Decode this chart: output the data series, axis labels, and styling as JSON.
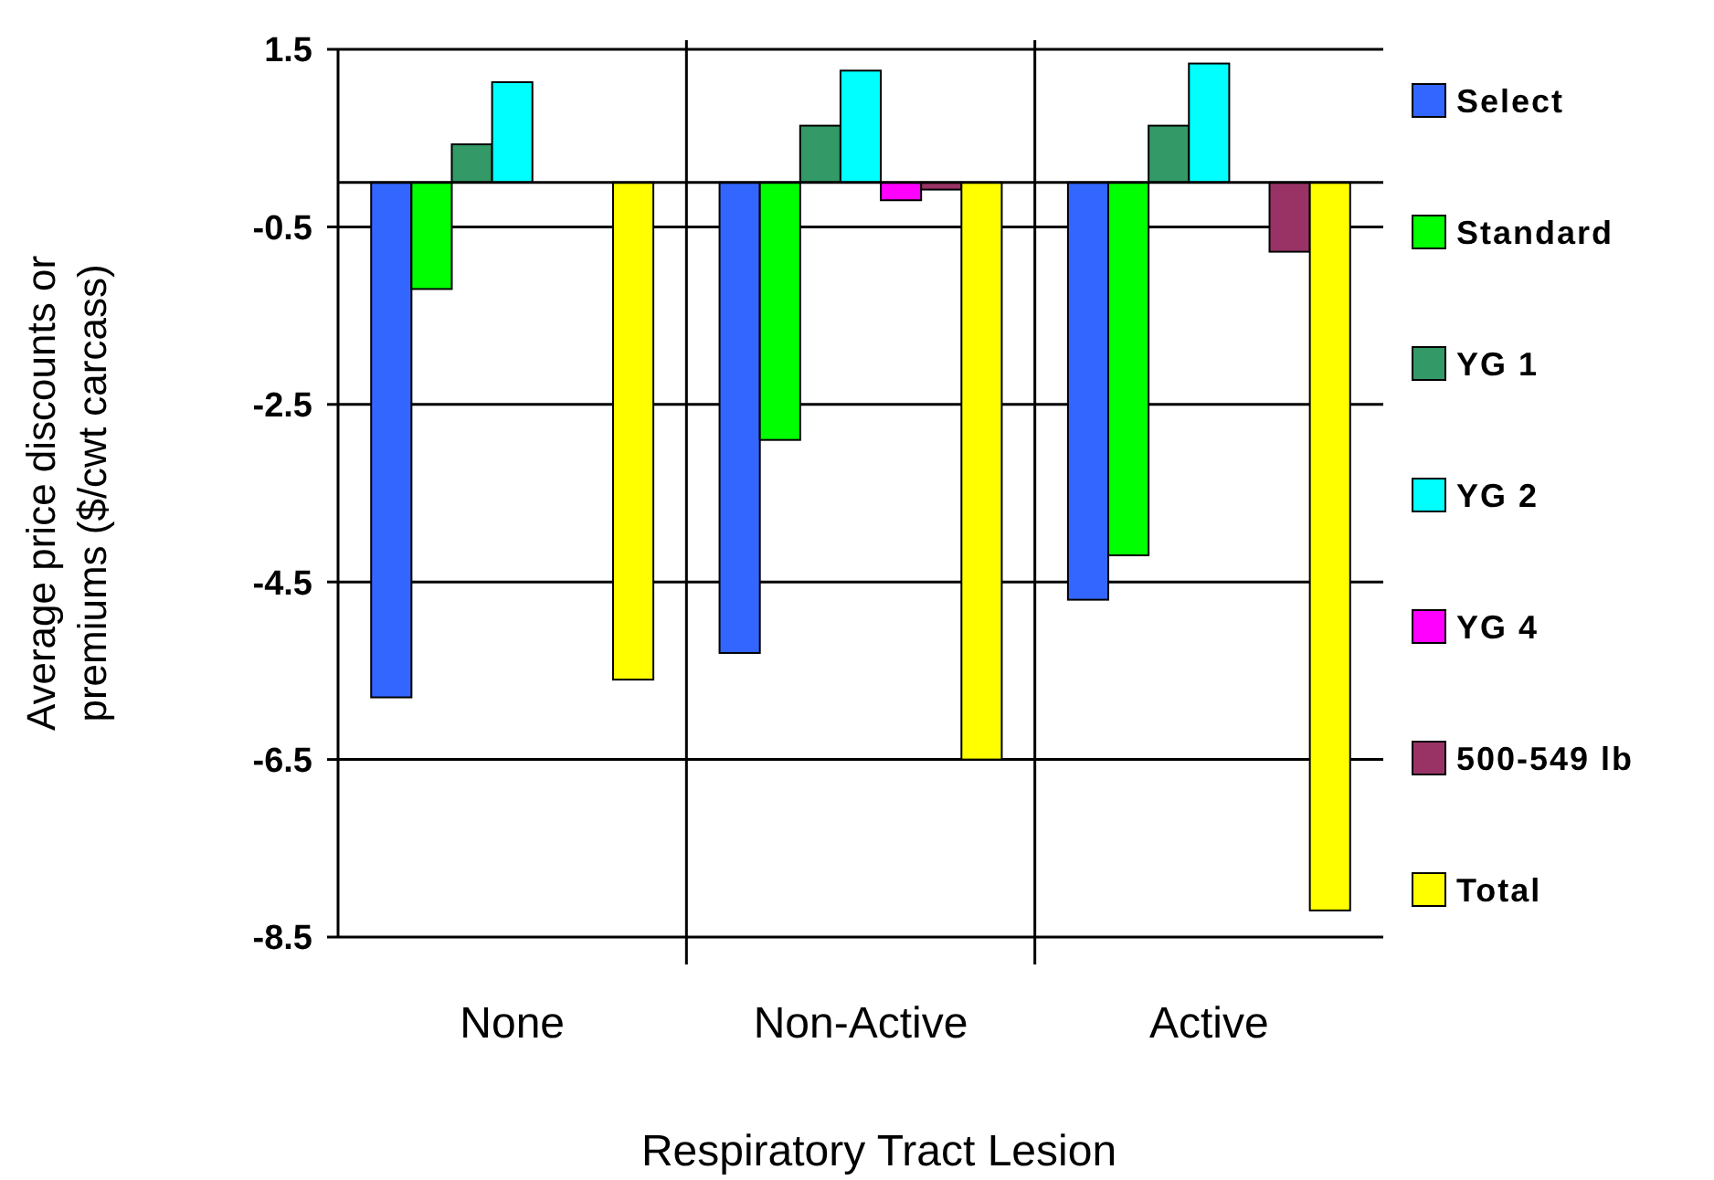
{
  "chart_data": {
    "type": "bar",
    "xlabel": "Respiratory Tract Lesion",
    "ylabel": "Average price discounts or\npremiums ($/cwt carcass)",
    "categories": [
      "None",
      "Non-Active",
      "Active"
    ],
    "series": [
      {
        "name": "Select",
        "color": "#3366ff",
        "values": [
          -5.8,
          -5.3,
          -4.7
        ]
      },
      {
        "name": "Standard",
        "color": "#00ff00",
        "values": [
          -1.2,
          -2.9,
          -4.2
        ]
      },
      {
        "name": "YG 1",
        "color": "#339966",
        "values": [
          0.43,
          0.64,
          0.64
        ]
      },
      {
        "name": "YG 2",
        "color": "#00ffff",
        "values": [
          1.13,
          1.26,
          1.34
        ]
      },
      {
        "name": "YG 4",
        "color": "#ff00ff",
        "values": [
          null,
          -0.2,
          null
        ]
      },
      {
        "name": "500-549 lb",
        "color": "#993366",
        "values": [
          null,
          -0.08,
          -0.78
        ]
      },
      {
        "name": "Total",
        "color": "#ffff00",
        "values": [
          -5.6,
          -6.5,
          -8.2
        ]
      }
    ],
    "ylim": [
      -8.5,
      1.5
    ],
    "yticks": [
      1.5,
      -0.5,
      -2.5,
      -4.5,
      -6.5,
      -8.5
    ],
    "grid": true,
    "legend": "right"
  }
}
